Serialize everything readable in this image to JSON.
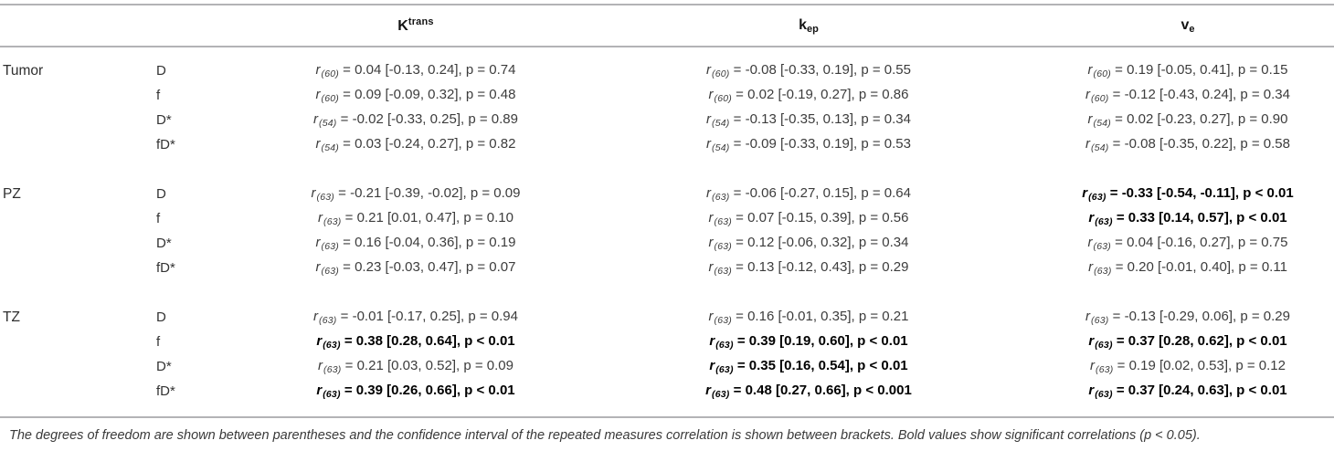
{
  "r_symbol": "r",
  "header": {
    "ktrans_base": "K",
    "ktrans_sup": "trans",
    "kep_base": "k",
    "kep_sub": "ep",
    "ve_base": "v",
    "ve_sub": "e"
  },
  "groups": [
    {
      "label": "Tumor",
      "rows": [
        {
          "param": "D",
          "ktrans": {
            "df": "(60)",
            "rest": " = 0.04 [-0.13, 0.24], p = 0.74",
            "bold": false
          },
          "kep": {
            "df": "(60)",
            "rest": " = -0.08 [-0.33, 0.19], p = 0.55",
            "bold": false
          },
          "ve": {
            "df": "(60)",
            "rest": " = 0.19 [-0.05, 0.41], p = 0.15",
            "bold": false
          }
        },
        {
          "param": "f",
          "ktrans": {
            "df": "(60)",
            "rest": " = 0.09 [-0.09, 0.32], p = 0.48",
            "bold": false
          },
          "kep": {
            "df": "(60)",
            "rest": " = 0.02 [-0.19, 0.27], p = 0.86",
            "bold": false
          },
          "ve": {
            "df": "(60)",
            "rest": " = -0.12 [-0.43, 0.24], p = 0.34",
            "bold": false
          }
        },
        {
          "param": "D*",
          "ktrans": {
            "df": "(54)",
            "rest": " = -0.02 [-0.33, 0.25], p = 0.89",
            "bold": false
          },
          "kep": {
            "df": "(54)",
            "rest": " = -0.13 [-0.35, 0.13], p = 0.34",
            "bold": false
          },
          "ve": {
            "df": "(54)",
            "rest": " = 0.02 [-0.23, 0.27], p = 0.90",
            "bold": false
          }
        },
        {
          "param": "fD*",
          "ktrans": {
            "df": "(54)",
            "rest": " = 0.03 [-0.24, 0.27], p = 0.82",
            "bold": false
          },
          "kep": {
            "df": "(54)",
            "rest": " = -0.09 [-0.33, 0.19], p = 0.53",
            "bold": false
          },
          "ve": {
            "df": "(54)",
            "rest": " = -0.08 [-0.35, 0.22], p = 0.58",
            "bold": false
          }
        }
      ]
    },
    {
      "label": "PZ",
      "rows": [
        {
          "param": "D",
          "ktrans": {
            "df": "(63)",
            "rest": " = -0.21 [-0.39, -0.02], p = 0.09",
            "bold": false
          },
          "kep": {
            "df": "(63)",
            "rest": " = -0.06 [-0.27, 0.15], p = 0.64",
            "bold": false
          },
          "ve": {
            "df": "(63)",
            "rest": " = -0.33 [-0.54, -0.11], p < 0.01",
            "bold": true
          }
        },
        {
          "param": "f",
          "ktrans": {
            "df": "(63)",
            "rest": " = 0.21 [0.01, 0.47], p = 0.10",
            "bold": false
          },
          "kep": {
            "df": "(63)",
            "rest": " = 0.07 [-0.15, 0.39], p = 0.56",
            "bold": false
          },
          "ve": {
            "df": "(63)",
            "rest": " = 0.33 [0.14, 0.57], p < 0.01",
            "bold": true
          }
        },
        {
          "param": "D*",
          "ktrans": {
            "df": "(63)",
            "rest": " = 0.16 [-0.04, 0.36], p = 0.19",
            "bold": false
          },
          "kep": {
            "df": "(63)",
            "rest": " = 0.12 [-0.06, 0.32], p = 0.34",
            "bold": false
          },
          "ve": {
            "df": "(63)",
            "rest": " = 0.04 [-0.16, 0.27], p = 0.75",
            "bold": false
          }
        },
        {
          "param": "fD*",
          "ktrans": {
            "df": "(63)",
            "rest": " = 0.23 [-0.03, 0.47], p = 0.07",
            "bold": false
          },
          "kep": {
            "df": "(63)",
            "rest": " = 0.13 [-0.12, 0.43], p = 0.29",
            "bold": false
          },
          "ve": {
            "df": "(63)",
            "rest": " = 0.20 [-0.01, 0.40], p = 0.11",
            "bold": false
          }
        }
      ]
    },
    {
      "label": "TZ",
      "rows": [
        {
          "param": "D",
          "ktrans": {
            "df": "(63)",
            "rest": " = -0.01 [-0.17, 0.25], p = 0.94",
            "bold": false
          },
          "kep": {
            "df": "(63)",
            "rest": " = 0.16 [-0.01, 0.35], p = 0.21",
            "bold": false
          },
          "ve": {
            "df": "(63)",
            "rest": " = -0.13 [-0.29, 0.06], p = 0.29",
            "bold": false
          }
        },
        {
          "param": "f",
          "ktrans": {
            "df": "(63)",
            "rest": " = 0.38 [0.28, 0.64], p < 0.01",
            "bold": true
          },
          "kep": {
            "df": "(63)",
            "rest": " = 0.39 [0.19, 0.60], p < 0.01",
            "bold": true
          },
          "ve": {
            "df": "(63)",
            "rest": " = 0.37 [0.28, 0.62], p < 0.01",
            "bold": true
          }
        },
        {
          "param": "D*",
          "ktrans": {
            "df": "(63)",
            "rest": " = 0.21 [0.03, 0.52], p = 0.09",
            "bold": false
          },
          "kep": {
            "df": "(63)",
            "rest": " = 0.35 [0.16, 0.54], p < 0.01",
            "bold": true
          },
          "ve": {
            "df": "(63)",
            "rest": " = 0.19 [0.02, 0.53], p = 0.12",
            "bold": false
          }
        },
        {
          "param": "fD*",
          "ktrans": {
            "df": "(63)",
            "rest": " = 0.39 [0.26, 0.66], p < 0.01",
            "bold": true
          },
          "kep": {
            "df": "(63)",
            "rest": " = 0.48 [0.27, 0.66], p < 0.001",
            "bold": true
          },
          "ve": {
            "df": "(63)",
            "rest": " = 0.37 [0.24, 0.63], p < 0.01",
            "bold": true
          }
        }
      ]
    }
  ],
  "footnote": "The degrees of freedom are shown between parentheses and the confidence interval of the repeated measures correlation is shown between brackets. Bold values show significant correlations (p < 0.05)."
}
